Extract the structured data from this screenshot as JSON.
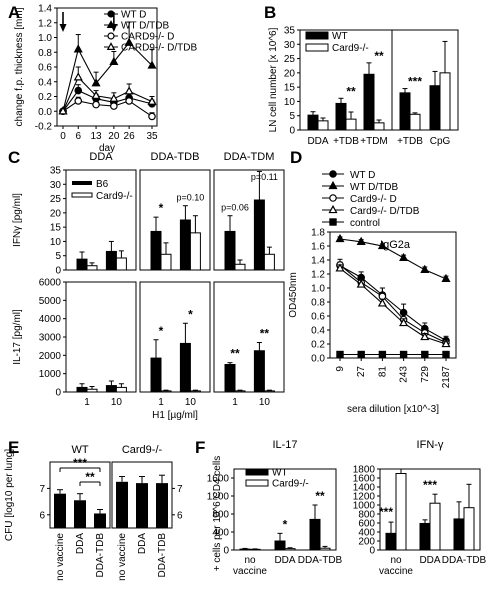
{
  "figure": {
    "width": 496,
    "height": 600
  },
  "colors": {
    "filled": "#000000",
    "open": "#ffffff",
    "stroke": "#000000"
  },
  "chart_data": [
    {
      "id": "A",
      "panel": "A",
      "type": "line",
      "xlabel": "day",
      "ylabel": "change f.p. thickness [mm]",
      "x": [
        0,
        6,
        13,
        20,
        26,
        35
      ],
      "x_ticks": [
        "0",
        "6",
        "13",
        "20",
        "26",
        "35"
      ],
      "ylim": [
        -0.2,
        1.4
      ],
      "y_ticks": [
        "-0.2",
        "0.0",
        "0.2",
        "0.4",
        "0.6",
        "0.8",
        "1.0",
        "1.2",
        "1.4"
      ],
      "arrows_at_day": [
        0,
        20
      ],
      "series": [
        {
          "name": "WT D",
          "marker": "circle",
          "fill": "filled",
          "values": [
            0.0,
            0.28,
            0.17,
            0.12,
            0.18,
            0.1
          ],
          "err": [
            0.02,
            0.08,
            0.06,
            0.05,
            0.08,
            0.05
          ]
        },
        {
          "name": "WT D/TDB",
          "marker": "triangle",
          "fill": "filled",
          "values": [
            0.0,
            0.84,
            0.38,
            0.67,
            0.93,
            0.62
          ],
          "err": [
            0.02,
            0.2,
            0.15,
            0.14,
            0.28,
            0.22
          ]
        },
        {
          "name": "CARD9-/- D",
          "marker": "circle",
          "fill": "open",
          "values": [
            0.0,
            0.14,
            0.09,
            0.07,
            0.14,
            -0.07
          ],
          "err": [
            0.02,
            0.05,
            0.04,
            0.04,
            0.06,
            0.05
          ]
        },
        {
          "name": "CARD9-/- D/TDB",
          "marker": "triangle",
          "fill": "open",
          "values": [
            0.0,
            0.46,
            0.21,
            0.17,
            0.27,
            0.13
          ],
          "err": [
            0.02,
            0.14,
            0.07,
            0.08,
            0.1,
            0.07
          ]
        }
      ]
    },
    {
      "id": "B",
      "panel": "B",
      "type": "bar",
      "ylabel": "LN cell number [x 10^6]",
      "ylim": [
        0,
        35
      ],
      "y_ticks": [
        "0",
        "5",
        "10",
        "15",
        "20",
        "25",
        "30",
        "35"
      ],
      "categories": [
        "DDA",
        "+TDB",
        "+TDM",
        "+TDB",
        "CpG"
      ],
      "series": [
        {
          "name": "WT",
          "fill": "filled",
          "values": [
            5.2,
            9.3,
            19.5,
            13.0,
            15.5
          ],
          "err": [
            1.2,
            1.8,
            4.0,
            1.5,
            5.0
          ]
        },
        {
          "name": "Card9-/-",
          "fill": "open",
          "values": [
            3.2,
            3.8,
            2.5,
            5.5,
            20.0
          ],
          "err": [
            1.0,
            2.5,
            1.0,
            0.5,
            11.0
          ]
        }
      ],
      "annotations": [
        {
          "category": 1,
          "text": "**"
        },
        {
          "category": 2,
          "text": "**"
        },
        {
          "category": 3,
          "text": "***"
        }
      ]
    },
    {
      "id": "C",
      "panel": "C",
      "type": "bar",
      "column_titles": [
        "DDA",
        "DDA-TDB",
        "DDA-TDM"
      ],
      "categories": [
        "1",
        "10"
      ],
      "xlabel": "H1 [µg/ml]",
      "legend": [
        "B6",
        "Card9-/-"
      ],
      "rows": [
        {
          "ylabel": "IFNγ [pg/ml]",
          "ylim": [
            0,
            35
          ],
          "y_ticks": [
            "0",
            "5",
            "10",
            "15",
            "20",
            "25",
            "30",
            "35"
          ],
          "cols": [
            {
              "B6": [
                3.8,
                6.5
              ],
              "B6_err": [
                2.5,
                3.5
              ],
              "Card9": [
                1.5,
                4.2
              ],
              "Card9_err": [
                1.0,
                2.5
              ],
              "annot": [
                "",
                ""
              ]
            },
            {
              "B6": [
                13.5,
                17.5
              ],
              "B6_err": [
                5.0,
                5.0
              ],
              "Card9": [
                5.5,
                13.0
              ],
              "Card9_err": [
                4.0,
                6.0
              ],
              "annot": [
                "*",
                "p=0.10"
              ]
            },
            {
              "B6": [
                13.5,
                24.5
              ],
              "B6_err": [
                5.5,
                10.0
              ],
              "Card9": [
                2.0,
                5.5
              ],
              "Card9_err": [
                1.5,
                2.5
              ],
              "annot": [
                "p=0.06",
                "p=0.11"
              ]
            }
          ]
        },
        {
          "ylabel": "IL-17 [pg/ml]",
          "ylim": [
            0,
            6000
          ],
          "y_ticks": [
            "0",
            "1000",
            "2000",
            "3000",
            "4000",
            "5000",
            "6000"
          ],
          "cols": [
            {
              "B6": [
                250,
                350
              ],
              "B6_err": [
                200,
                250
              ],
              "Card9": [
                150,
                250
              ],
              "Card9_err": [
                150,
                200
              ],
              "annot": [
                "",
                ""
              ]
            },
            {
              "B6": [
                1850,
                2650
              ],
              "B6_err": [
                1000,
                1100
              ],
              "Card9": [
                60,
                60
              ],
              "Card9_err": [
                40,
                40
              ],
              "annot": [
                "*",
                "*"
              ]
            },
            {
              "B6": [
                1500,
                2250
              ],
              "B6_err": [
                100,
                450
              ],
              "Card9": [
                60,
                60
              ],
              "Card9_err": [
                40,
                40
              ],
              "annot": [
                "**",
                "**"
              ]
            }
          ]
        }
      ]
    },
    {
      "id": "D",
      "panel": "D",
      "type": "line",
      "title": "IgG2a",
      "xlabel": "sera dilution [x10^-3]",
      "ylabel": "OD450nm",
      "categories": [
        "9",
        "27",
        "81",
        "243",
        "729",
        "2187"
      ],
      "ylim": [
        0.0,
        1.8
      ],
      "y_ticks": [
        "0.0",
        "0.2",
        "0.4",
        "0.6",
        "0.8",
        "1.0",
        "1.2",
        "1.4",
        "1.6",
        "1.8"
      ],
      "series": [
        {
          "name": "WT D",
          "marker": "circle",
          "fill": "filled",
          "values": [
            1.32,
            1.15,
            0.9,
            0.65,
            0.42,
            0.25
          ],
          "err": [
            0.05,
            0.08,
            0.1,
            0.12,
            0.08,
            0.06
          ]
        },
        {
          "name": "WT D/TDB",
          "marker": "triangle",
          "fill": "filled",
          "values": [
            1.7,
            1.66,
            1.6,
            1.43,
            1.26,
            1.13
          ],
          "err": [
            0.03,
            0.03,
            0.03,
            0.04,
            0.04,
            0.04
          ]
        },
        {
          "name": "Card9-/- D",
          "marker": "circle",
          "fill": "open",
          "values": [
            1.33,
            1.08,
            0.88,
            0.55,
            0.36,
            0.22
          ],
          "err": [
            0.08,
            0.1,
            0.12,
            0.1,
            0.08,
            0.06
          ]
        },
        {
          "name": "Card9-/- D/TDB",
          "marker": "triangle",
          "fill": "open",
          "values": [
            1.28,
            1.05,
            0.78,
            0.5,
            0.3,
            0.2
          ],
          "err": [
            0.05,
            0.06,
            0.06,
            0.06,
            0.05,
            0.04
          ]
        },
        {
          "name": "control",
          "marker": "square",
          "fill": "filled",
          "values": [
            0.05,
            0.05,
            0.05,
            0.05,
            0.05,
            0.05
          ],
          "err": [
            0,
            0,
            0,
            0,
            0,
            0
          ]
        }
      ]
    },
    {
      "id": "E",
      "panel": "E",
      "type": "bar",
      "ylabel": "CFU [log10 per lung]",
      "ylim": [
        5.5,
        8.0
      ],
      "y_ticks": [
        "6",
        "7"
      ],
      "subpanels": [
        {
          "title": "WT",
          "categories": [
            "no vaccine",
            "DDA",
            "DDA-TDB"
          ],
          "values": [
            6.8,
            6.55,
            6.05
          ],
          "err": [
            0.15,
            0.25,
            0.15
          ]
        },
        {
          "title": "Card9-/-",
          "categories": [
            "no vaccine",
            "DDA",
            "DDA-TDB"
          ],
          "values": [
            7.25,
            7.2,
            7.2
          ],
          "err": [
            0.2,
            0.25,
            0.3
          ]
        }
      ],
      "annotations": [
        {
          "from": 0,
          "to": 2,
          "text": "***"
        },
        {
          "from": 1,
          "to": 2,
          "text": "**"
        }
      ]
    },
    {
      "id": "F",
      "panel": "F",
      "type": "bar",
      "ylabel": "+ cells per 10^6 CD4 cells",
      "legend": [
        "WT",
        "Card9-/-"
      ],
      "subpanels": [
        {
          "title": "IL-17",
          "categories": [
            "no vaccine",
            "DDA",
            "DDA-TDB"
          ],
          "ylim": [
            0,
            1800
          ],
          "y_ticks": [
            "0",
            "200",
            "400",
            "600",
            "800",
            "1000",
            "1200",
            "1400",
            "1600",
            "1800"
          ],
          "WT": [
            20,
            200,
            680
          ],
          "WT_err": [
            15,
            170,
            320
          ],
          "KO": [
            15,
            30,
            40
          ],
          "KO_err": [
            10,
            20,
            40
          ],
          "annot": [
            "",
            "*",
            "**"
          ]
        },
        {
          "title": "IFN-γ",
          "categories": [
            "no vaccine",
            "DDA",
            "DDA-TDB"
          ],
          "ylim": [
            0,
            1800
          ],
          "y_ticks": [
            "0",
            "200",
            "400",
            "600",
            "800",
            "1000",
            "1200",
            "1400",
            "1600",
            "1800"
          ],
          "WT": [
            370,
            590,
            690
          ],
          "WT_err": [
            250,
            80,
            380
          ],
          "KO": [
            1700,
            1040,
            940
          ],
          "KO_err": [
            100,
            200,
            520
          ],
          "annot": [
            "***",
            "***",
            ""
          ]
        }
      ]
    }
  ]
}
